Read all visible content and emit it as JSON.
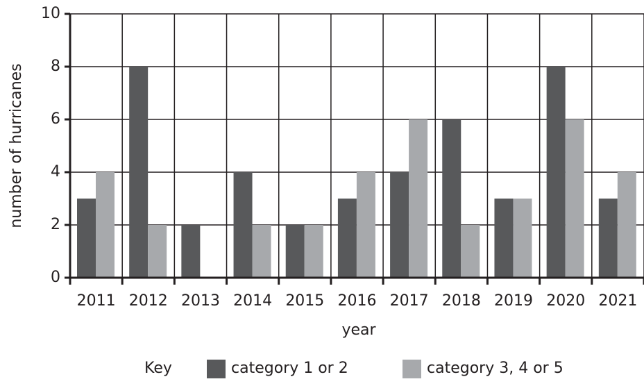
{
  "chart_data": {
    "type": "bar",
    "x_label": "year",
    "y_label": "number of hurricanes",
    "categories": [
      "2011",
      "2012",
      "2013",
      "2014",
      "2015",
      "2016",
      "2017",
      "2018",
      "2019",
      "2020",
      "2021"
    ],
    "series": [
      {
        "name": "category 1 or 2",
        "color": "#58595b",
        "values": [
          3,
          8,
          2,
          4,
          2,
          3,
          4,
          6,
          3,
          8,
          3
        ]
      },
      {
        "name": "category 3, 4 or 5",
        "color": "#a7a9ac",
        "values": [
          4,
          2,
          0,
          2,
          2,
          4,
          6,
          2,
          3,
          6,
          4
        ]
      }
    ],
    "legend_title": "Key",
    "legend_position": "bottom",
    "ylim": [
      0,
      10
    ],
    "yticks": [
      0,
      2,
      4,
      6,
      8,
      10
    ],
    "grid": true
  }
}
